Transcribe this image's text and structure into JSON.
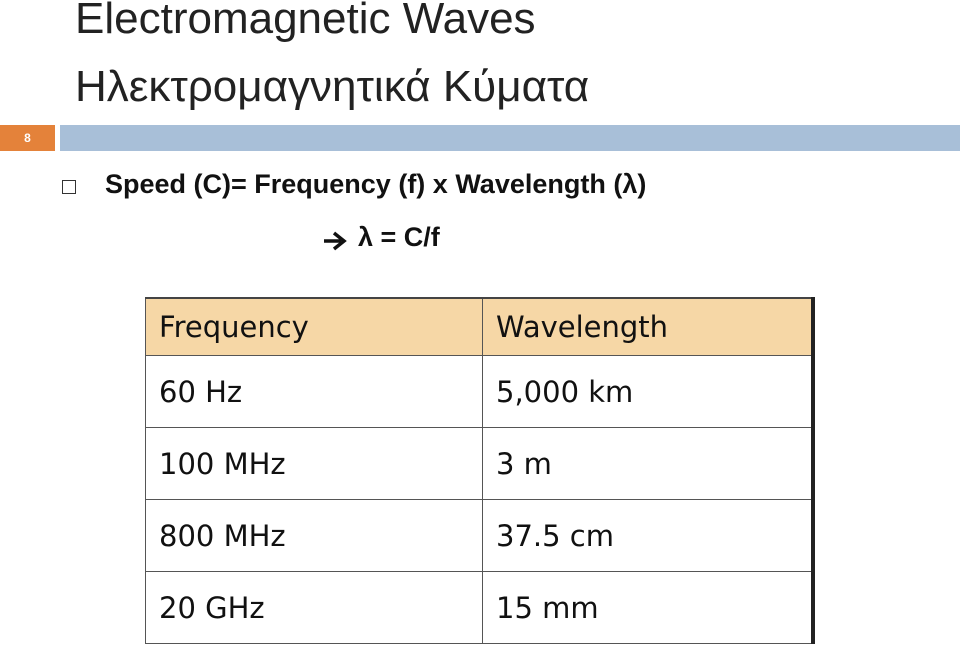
{
  "slide_number": "8",
  "title": [
    "Electromagnetic Waves",
    "Ηλεκτρομαγνητικά Κύματα"
  ],
  "bullet": "Speed (C)= Frequency (f) x Wavelength (λ)",
  "formula": "λ = C/f",
  "table": {
    "header": [
      "Frequency",
      "Wavelength"
    ],
    "rows": [
      [
        "60 Hz",
        "5,000 km"
      ],
      [
        "100 MHz",
        "3 m"
      ],
      [
        "800 MHz",
        "37.5 cm"
      ],
      [
        "20 GHz",
        "15 mm"
      ]
    ]
  }
}
